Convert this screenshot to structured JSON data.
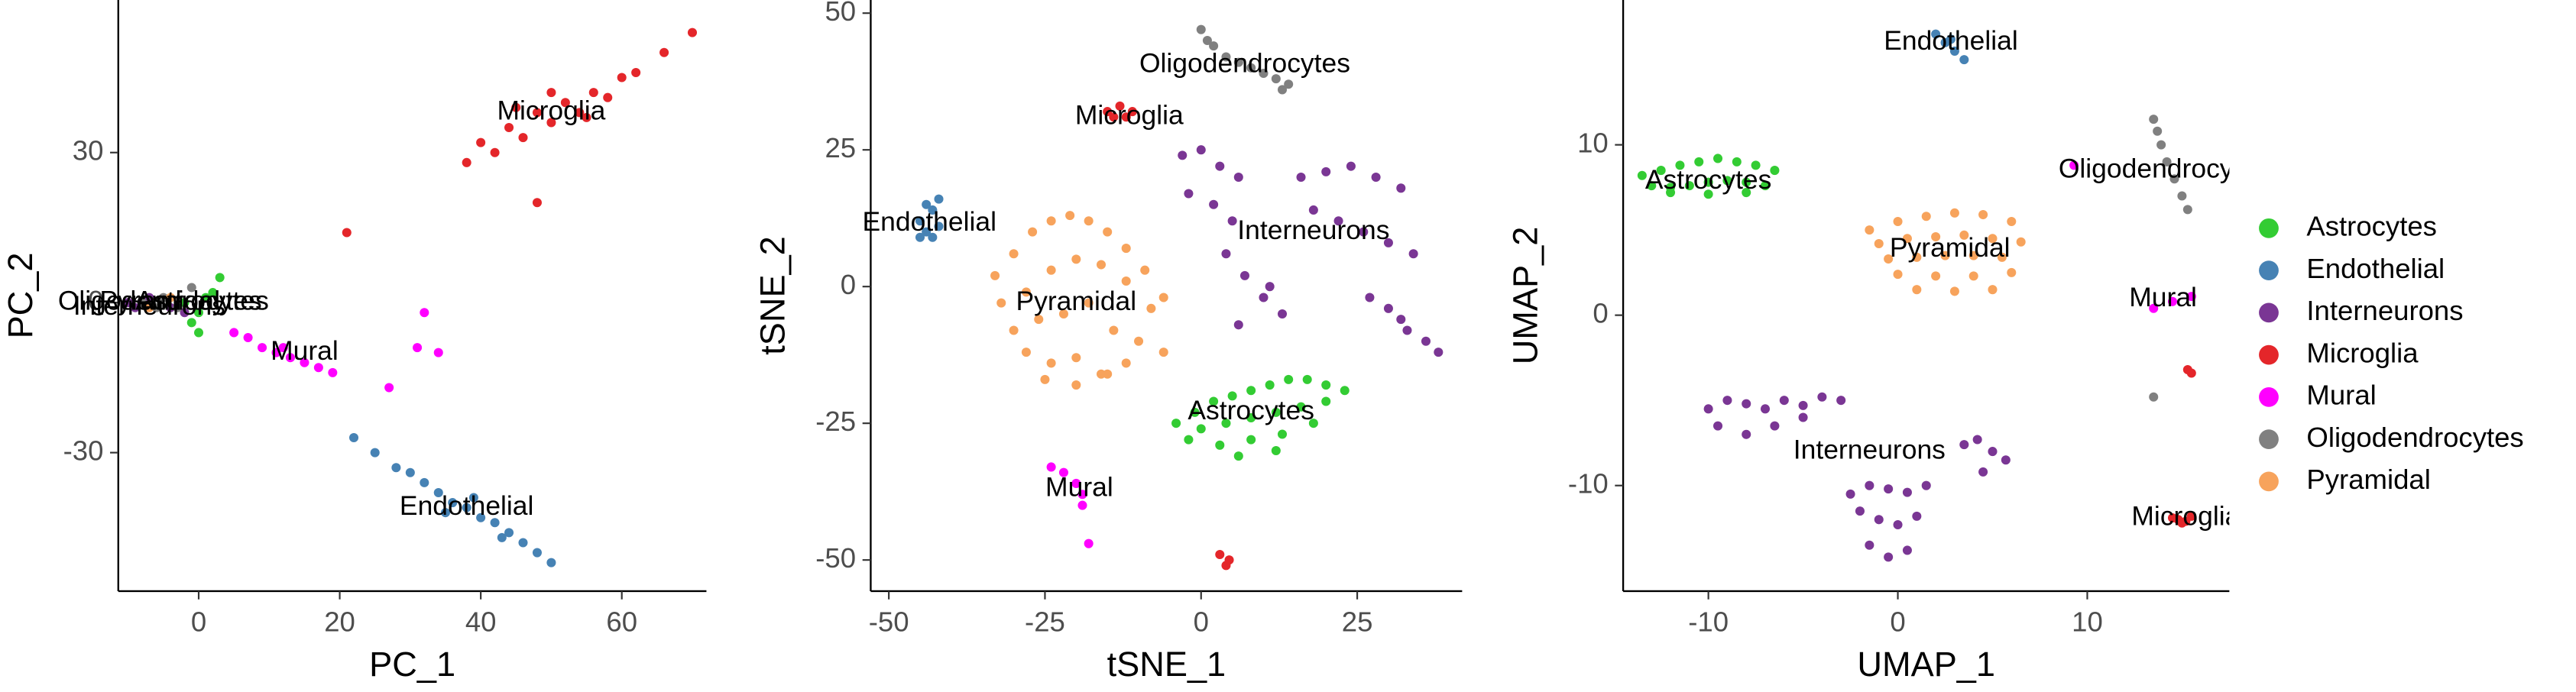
{
  "chart_data": [
    {
      "type": "scatter",
      "xlabel": "PC_1",
      "ylabel": "PC_2",
      "xlim": [
        -11.4,
        72
      ],
      "ylim": [
        -57.7,
        60.5
      ],
      "xticks": [
        0,
        20,
        40,
        60
      ],
      "yticks": [
        -30,
        0,
        30
      ],
      "series": [
        {
          "name": "Microglia",
          "color": "#e4262a",
          "x": [
            38,
            40,
            42,
            44,
            46,
            48,
            50,
            52,
            54,
            56,
            58,
            60,
            62,
            66,
            70,
            45,
            50,
            55,
            48,
            21
          ],
          "y": [
            28,
            32,
            30,
            35,
            33,
            38,
            36,
            40,
            38,
            42,
            41,
            45,
            46,
            50,
            54,
            39,
            42,
            37,
            20,
            14
          ]
        },
        {
          "name": "Endothelial",
          "color": "#4682b4",
          "x": [
            22,
            25,
            28,
            30,
            32,
            34,
            36,
            38,
            40,
            42,
            44,
            46,
            48,
            50,
            35,
            39,
            43
          ],
          "y": [
            -27,
            -30,
            -33,
            -34,
            -36,
            -38,
            -40,
            -41,
            -43,
            -44,
            -46,
            -48,
            -50,
            -52,
            -42,
            -39,
            -47
          ]
        },
        {
          "name": "Mural",
          "color": "#ff00ff",
          "x": [
            5,
            7,
            9,
            11,
            13,
            15,
            17,
            19,
            27,
            31,
            34,
            12,
            32
          ],
          "y": [
            -6,
            -7,
            -9,
            -10,
            -11,
            -12,
            -13,
            -14,
            -17,
            -9,
            -10,
            -9,
            -2
          ]
        },
        {
          "name": "Interneurons",
          "color": "#7a3694",
          "x": [
            -10,
            -7,
            -4,
            -9,
            -2
          ],
          "y": [
            0,
            1,
            -1,
            -1,
            -2
          ]
        },
        {
          "name": "Oligodendrocytes",
          "color": "#808080",
          "x": [
            -8,
            -5,
            -3,
            -6,
            -1
          ],
          "y": [
            0,
            1,
            -1,
            -1,
            3
          ]
        },
        {
          "name": "Pyramidal",
          "color": "#f7a35c",
          "x": [
            -7,
            -4
          ],
          "y": [
            -1,
            1
          ]
        },
        {
          "name": "Astrocytes",
          "color": "#33cc33",
          "x": [
            -2,
            0,
            2,
            3,
            -1,
            1,
            0
          ],
          "y": [
            0,
            -2,
            2,
            5,
            -4,
            1,
            -6
          ]
        }
      ]
    },
    {
      "type": "scatter",
      "xlabel": "tSNE_1",
      "ylabel": "tSNE_2",
      "xlim": [
        -52.9,
        41.8
      ],
      "ylim": [
        -55.7,
        52.4
      ],
      "xticks": [
        -50,
        -25,
        0,
        25
      ],
      "yticks": [
        -50,
        -25,
        0,
        25,
        50
      ],
      "series": [
        {
          "name": "Oligodendrocytes",
          "color": "#808080",
          "x": [
            0,
            1,
            2,
            4,
            6,
            8,
            10,
            12,
            14,
            13
          ],
          "y": [
            47,
            45,
            44,
            42,
            41,
            40,
            39,
            38,
            37,
            36
          ]
        },
        {
          "name": "Microglia",
          "color": "#e4262a",
          "x": [
            -15,
            -13,
            -12,
            -14,
            -11,
            3,
            4,
            4.5
          ],
          "y": [
            32,
            33,
            31,
            31,
            32,
            -49,
            -51,
            -50
          ]
        },
        {
          "name": "Endothelial",
          "color": "#4682b4",
          "x": [
            -45,
            -44,
            -43,
            -42,
            -44,
            -42,
            -45,
            -43
          ],
          "y": [
            12,
            10,
            14,
            11,
            15,
            16,
            9,
            9
          ]
        },
        {
          "name": "Interneurons",
          "color": "#7a3694",
          "x": [
            -3,
            0,
            3,
            6,
            -2,
            2,
            5,
            4,
            7,
            10,
            13,
            6,
            11,
            16,
            20,
            24,
            28,
            32,
            18,
            22,
            26,
            30,
            34,
            27,
            30,
            33,
            36,
            38,
            32
          ],
          "y": [
            24,
            25,
            22,
            20,
            17,
            15,
            12,
            6,
            2,
            -2,
            -5,
            -7,
            0,
            20,
            21,
            22,
            20,
            18,
            14,
            12,
            10,
            8,
            6,
            -2,
            -4,
            -8,
            -10,
            -12,
            -6
          ]
        },
        {
          "name": "Pyramidal",
          "color": "#f7a35c",
          "x": [
            -33,
            -30,
            -27,
            -24,
            -21,
            -18,
            -15,
            -12,
            -9,
            -6,
            -32,
            -28,
            -24,
            -20,
            -16,
            -12,
            -8,
            -30,
            -26,
            -22,
            -18,
            -14,
            -10,
            -6,
            -28,
            -24,
            -20,
            -16,
            -12,
            -25,
            -20,
            -15
          ],
          "y": [
            2,
            6,
            10,
            12,
            13,
            12,
            10,
            7,
            3,
            -2,
            -3,
            -1,
            3,
            5,
            4,
            1,
            -4,
            -8,
            -6,
            -5,
            -3,
            -8,
            -10,
            -12,
            -12,
            -14,
            -13,
            -16,
            -14,
            -17,
            -18,
            -16
          ]
        },
        {
          "name": "Astrocytes",
          "color": "#33cc33",
          "x": [
            -4,
            -1,
            2,
            5,
            8,
            11,
            14,
            17,
            20,
            23,
            0,
            4,
            8,
            12,
            16,
            20,
            -2,
            3,
            8,
            13,
            18,
            6,
            12
          ],
          "y": [
            -25,
            -23,
            -21,
            -20,
            -19,
            -18,
            -17,
            -17,
            -18,
            -19,
            -26,
            -25,
            -24,
            -23,
            -22,
            -21,
            -28,
            -29,
            -28,
            -27,
            -25,
            -31,
            -30
          ]
        },
        {
          "name": "Mural",
          "color": "#ff00ff",
          "x": [
            -24,
            -22,
            -20,
            -19,
            -19,
            -18
          ],
          "y": [
            -33,
            -34,
            -36,
            -38,
            -40,
            -47
          ]
        }
      ]
    },
    {
      "type": "scatter",
      "xlabel": "UMAP_1",
      "ylabel": "UMAP_2",
      "xlim": [
        -14.5,
        17.5
      ],
      "ylim": [
        -16.2,
        18.5
      ],
      "xticks": [
        -10,
        0,
        10
      ],
      "yticks": [
        -10,
        0,
        10
      ],
      "series": [
        {
          "name": "Endothelial",
          "color": "#4682b4",
          "x": [
            2,
            2.5,
            3,
            3.5,
            2.8
          ],
          "y": [
            16.5,
            16,
            15.5,
            15,
            16.2
          ]
        },
        {
          "name": "Astrocytes",
          "color": "#33cc33",
          "x": [
            -13.5,
            -12.5,
            -11.5,
            -10.5,
            -9.5,
            -8.5,
            -7.5,
            -6.5,
            -13,
            -12,
            -11,
            -10,
            -9,
            -8,
            -7,
            -12,
            -10,
            -8
          ],
          "y": [
            8.2,
            8.5,
            8.8,
            9,
            9.2,
            9,
            8.8,
            8.5,
            7.6,
            7.5,
            7.6,
            7.8,
            7.9,
            7.8,
            7.6,
            7.2,
            7.1,
            7.2
          ]
        },
        {
          "name": "Oligodendrocytes",
          "color": "#808080",
          "x": [
            13.5,
            13.7,
            13.9,
            14.2,
            14.6,
            15,
            15.3,
            13.5
          ],
          "y": [
            11.5,
            10.8,
            10,
            9,
            8,
            7,
            6.2,
            -4.8
          ]
        },
        {
          "name": "Pyramidal",
          "color": "#f7a35c",
          "x": [
            -1.5,
            0,
            1.5,
            3,
            4.5,
            6,
            -1,
            0.5,
            2,
            3.5,
            5,
            6.5,
            -0.5,
            1,
            2.5,
            4,
            5.5,
            0,
            2,
            4,
            6,
            1,
            3,
            5
          ],
          "y": [
            5,
            5.5,
            5.8,
            6,
            5.9,
            5.5,
            4.2,
            4.5,
            4.6,
            4.7,
            4.5,
            4.3,
            3.3,
            3.4,
            3.5,
            3.5,
            3.4,
            2.4,
            2.3,
            2.3,
            2.5,
            1.5,
            1.4,
            1.5
          ]
        },
        {
          "name": "Mural",
          "color": "#ff00ff",
          "x": [
            9.3,
            13.5,
            14.5,
            15.5
          ],
          "y": [
            8.8,
            0.4,
            0.8,
            1.1
          ]
        },
        {
          "name": "Interneurons",
          "color": "#7a3694",
          "x": [
            -10,
            -9,
            -8,
            -7,
            -6,
            -5,
            -4,
            -3,
            -9.5,
            -8,
            -6.5,
            -5,
            3.5,
            4.2,
            5,
            5.7,
            4.5,
            -2.5,
            -1.5,
            -0.5,
            0.5,
            1.5,
            -2,
            -1,
            0,
            1,
            -1.5,
            -0.5,
            0.5
          ],
          "y": [
            -5.5,
            -5,
            -5.2,
            -5.5,
            -5,
            -5.3,
            -4.8,
            -5,
            -6.5,
            -7,
            -6.5,
            -6,
            -7.6,
            -7.3,
            -8,
            -8.5,
            -9.2,
            -10.5,
            -10,
            -10.2,
            -10.4,
            -10,
            -11.5,
            -12,
            -12.3,
            -11.8,
            -13.5,
            -14.2,
            -13.8
          ]
        },
        {
          "name": "Microglia",
          "color": "#e4262a",
          "x": [
            15.3,
            15.5,
            14.5,
            15,
            15.5,
            14.8,
            15.2
          ],
          "y": [
            -3.2,
            -3.4,
            -11.9,
            -12.2,
            -11.8,
            -12,
            -12.1
          ]
        }
      ]
    }
  ],
  "legend": {
    "items": [
      {
        "name": "Astrocytes",
        "color": "#33cc33"
      },
      {
        "name": "Endothelial",
        "color": "#4682b4"
      },
      {
        "name": "Interneurons",
        "color": "#7a3694"
      },
      {
        "name": "Microglia",
        "color": "#e4262a"
      },
      {
        "name": "Mural",
        "color": "#ff00ff"
      },
      {
        "name": "Oligodendrocytes",
        "color": "#808080"
      },
      {
        "name": "Pyramidal",
        "color": "#f7a35c"
      }
    ]
  }
}
